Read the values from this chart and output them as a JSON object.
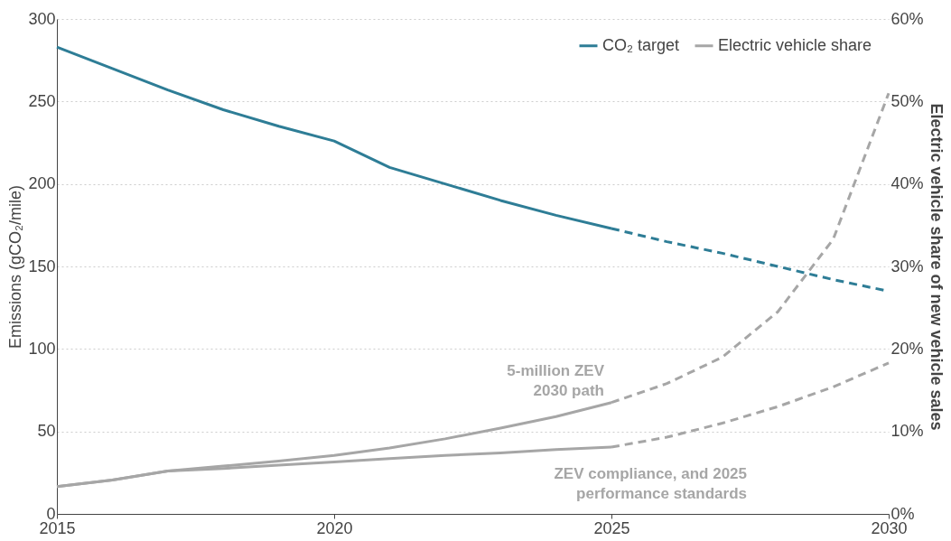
{
  "chart_data": {
    "type": "line",
    "ylabel": "Emissions (gCO₂/mile)",
    "y2label": "Electric vehicle share of new vehicle sales",
    "xlim": [
      2015,
      2030
    ],
    "xticks": [
      2015,
      2020,
      2025,
      2030
    ],
    "ylim": [
      0,
      300
    ],
    "yticks": [
      0,
      50,
      100,
      150,
      200,
      250,
      300
    ],
    "y2lim": [
      0,
      60
    ],
    "y2ticks": [
      {
        "value": 0,
        "label": "0%"
      },
      {
        "value": 10,
        "label": "10%"
      },
      {
        "value": 20,
        "label": "20%"
      },
      {
        "value": 30,
        "label": "30%"
      },
      {
        "value": 40,
        "label": "40%"
      },
      {
        "value": 50,
        "label": "50%"
      },
      {
        "value": 60,
        "label": "60%"
      }
    ],
    "grid": "y",
    "legend": "top right",
    "series": [
      {
        "name": "CO₂ target",
        "color": "#2e7d96",
        "line_style": "solid",
        "x": [
          2015,
          2016,
          2017,
          2018,
          2019,
          2020,
          2021,
          2022,
          2023,
          2024,
          2025
        ],
        "values": [
          283,
          270,
          257,
          245,
          235,
          226,
          210,
          200,
          190,
          181,
          173
        ]
      },
      {
        "color": "#2e7d96",
        "line_style": "dashed",
        "x": [
          2025,
          2026,
          2027,
          2028,
          2029,
          2030
        ],
        "values": [
          173,
          165,
          158,
          150,
          142,
          135
        ]
      },
      {
        "name": "Electric vehicle share",
        "color": "#a6a6a6",
        "line_style": "solid",
        "axis": "y2",
        "x": [
          2015,
          2016,
          2017,
          2018,
          2019,
          2020,
          2021,
          2022,
          2023,
          2024,
          2025
        ],
        "values": [
          3.3,
          4.1,
          5.2,
          5.8,
          6.4,
          7.1,
          8.0,
          9.1,
          10.4,
          11.8,
          13.5
        ]
      },
      {
        "color": "#a6a6a6",
        "line_style": "dashed",
        "axis": "y2",
        "x": [
          2025,
          2026,
          2027,
          2028,
          2029,
          2030
        ],
        "values": [
          13.5,
          15.8,
          19.0,
          24.5,
          33.3,
          51.0
        ]
      },
      {
        "color": "#a6a6a6",
        "line_style": "solid",
        "axis": "y2",
        "x": [
          2015,
          2016,
          2017,
          2018,
          2019,
          2020,
          2021,
          2022,
          2023,
          2024,
          2025
        ],
        "values": [
          3.3,
          4.1,
          5.2,
          5.5,
          5.9,
          6.3,
          6.7,
          7.1,
          7.4,
          7.8,
          8.1
        ]
      },
      {
        "color": "#a6a6a6",
        "line_style": "dashed",
        "axis": "y2",
        "x": [
          2025,
          2026,
          2027,
          2028,
          2029,
          2030
        ],
        "values": [
          8.1,
          9.3,
          11.0,
          13.0,
          15.4,
          18.3
        ]
      }
    ],
    "annotations": [
      "5-million ZEV\n2030 path",
      "ZEV compliance, and 2025\nperformance standards"
    ]
  }
}
